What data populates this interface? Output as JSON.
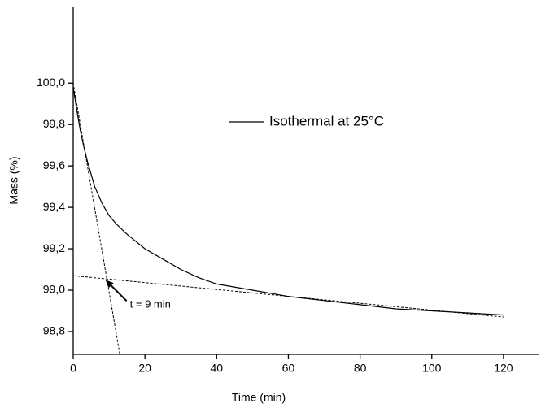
{
  "chart_data": {
    "type": "line",
    "x_label": "Time (min)",
    "y_label": "Mass (%)",
    "xlim": [
      0,
      130
    ],
    "ylim": [
      98.69,
      100.37
    ],
    "xticks": [
      0,
      20,
      40,
      60,
      80,
      100,
      120
    ],
    "yticks": [
      {
        "value": 98.8,
        "label": "98,8"
      },
      {
        "value": 99.0,
        "label": "99,0"
      },
      {
        "value": 99.2,
        "label": "99,2"
      },
      {
        "value": 99.4,
        "label": "99,4"
      },
      {
        "value": 99.6,
        "label": "99,6"
      },
      {
        "value": 99.8,
        "label": "99,8"
      },
      {
        "value": 100.0,
        "label": "100,0"
      }
    ],
    "grid": false,
    "series": [
      {
        "name": "Isothermal at 25°C",
        "color": "#000000",
        "x": [
          0,
          1,
          2,
          3,
          4,
          5,
          6,
          8,
          10,
          12,
          15,
          20,
          25,
          30,
          35,
          40,
          50,
          60,
          70,
          80,
          90,
          100,
          110,
          120
        ],
        "values": [
          99.98,
          99.87,
          99.77,
          99.69,
          99.62,
          99.56,
          99.5,
          99.42,
          99.36,
          99.32,
          99.27,
          99.2,
          99.15,
          99.1,
          99.06,
          99.03,
          99.0,
          98.97,
          98.95,
          98.93,
          98.91,
          98.9,
          98.89,
          98.88
        ]
      }
    ],
    "tangent_lines": [
      {
        "x": [
          0,
          13
        ],
        "values": [
          100.0,
          98.69
        ]
      },
      {
        "x": [
          0,
          120
        ],
        "values": [
          99.07,
          98.87
        ]
      }
    ],
    "annotation": {
      "text": "t = 9 min",
      "x": 9,
      "y": 99.05
    }
  }
}
